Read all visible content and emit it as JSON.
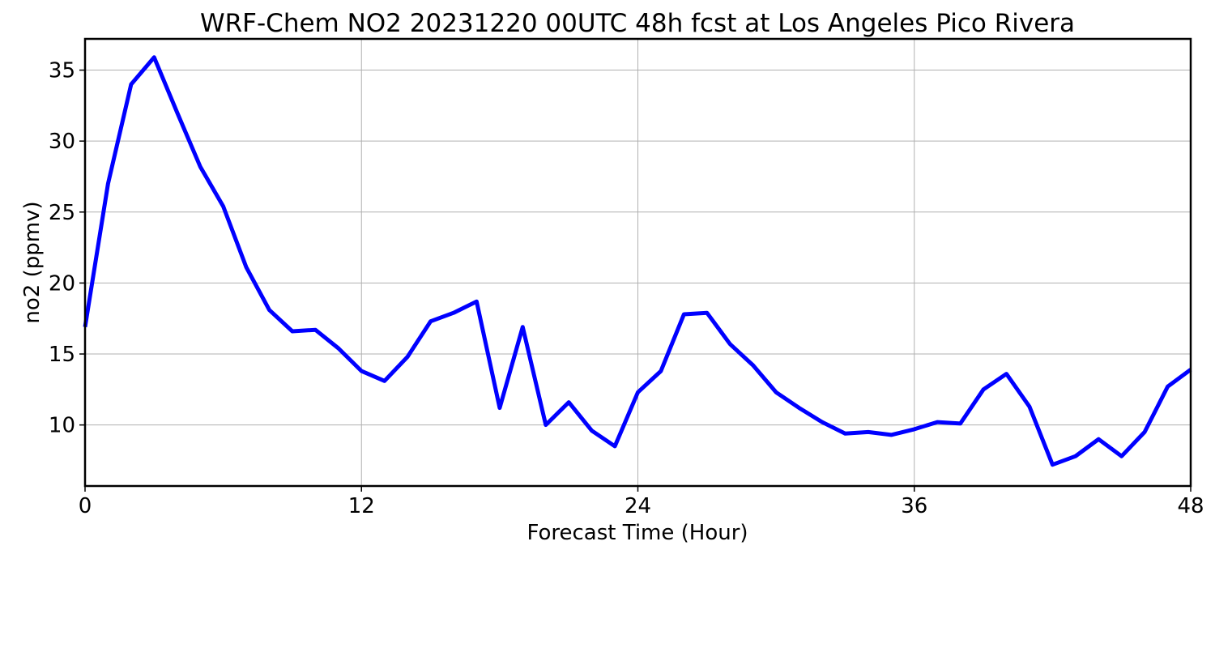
{
  "chart_data": {
    "type": "line",
    "title": "WRF-Chem NO2  20231220 00UTC 48h fcst at Los Angeles Pico Rivera",
    "xlabel": "Forecast Time (Hour)",
    "ylabel": "no2  (ppmv)",
    "xlim": [
      0,
      48
    ],
    "ylim": [
      5.7,
      37.2
    ],
    "xticks": [
      0,
      12,
      24,
      36,
      48
    ],
    "yticks": [
      10,
      15,
      20,
      25,
      30,
      35
    ],
    "grid": true,
    "legend": "none",
    "series": [
      {
        "color": "#0000ff",
        "x": [
          0,
          1,
          2,
          3,
          4,
          5,
          6,
          7,
          8,
          9,
          10,
          11,
          12,
          13,
          14,
          15,
          16,
          17,
          18,
          19,
          20,
          21,
          22,
          23,
          24,
          25,
          26,
          27,
          28,
          29,
          30,
          31,
          32,
          33,
          34,
          35,
          36,
          37,
          38,
          39,
          40,
          41,
          42,
          43,
          44,
          45,
          46,
          47,
          48
        ],
        "y": [
          16.9,
          27.0,
          34.0,
          35.9,
          32.0,
          28.2,
          25.4,
          21.1,
          18.1,
          16.6,
          16.7,
          15.4,
          13.8,
          13.1,
          14.8,
          17.3,
          17.9,
          18.7,
          11.2,
          16.9,
          10.0,
          11.6,
          9.6,
          8.5,
          12.3,
          13.8,
          17.8,
          17.9,
          15.7,
          14.2,
          12.3,
          11.2,
          10.2,
          9.4,
          9.5,
          9.3,
          9.7,
          10.2,
          10.1,
          12.5,
          13.6,
          11.3,
          7.2,
          7.8,
          9.0,
          7.8,
          9.5,
          12.7,
          13.9
        ]
      }
    ]
  }
}
